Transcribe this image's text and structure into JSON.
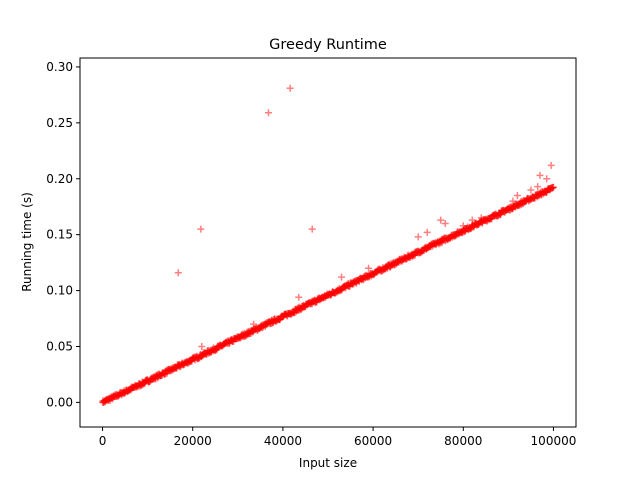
{
  "chart_data": {
    "type": "scatter",
    "title": "Greedy Runtime",
    "xlabel": "Input size",
    "ylabel": "Running time (s)",
    "xlim": [
      -5000,
      105000
    ],
    "ylim": [
      -0.022,
      0.308
    ],
    "xticks": [
      0,
      20000,
      40000,
      60000,
      80000,
      100000
    ],
    "xtick_labels": [
      "0",
      "20000",
      "40000",
      "60000",
      "80000",
      "100000"
    ],
    "yticks": [
      0.0,
      0.05,
      0.1,
      0.15,
      0.2,
      0.25,
      0.3
    ],
    "ytick_labels": [
      "0.00",
      "0.05",
      "0.10",
      "0.15",
      "0.20",
      "0.25",
      "0.30"
    ],
    "grid": false,
    "legend": "none",
    "marker": "plus",
    "color": "#ff0000",
    "series": [
      {
        "trend": {
          "x_start": 0,
          "x_end": 100000,
          "step": 100,
          "y_per_unit": 1.92e-06,
          "noise": 0.0015
        },
        "outliers": [
          {
            "x": 16800,
            "y": 0.116
          },
          {
            "x": 21800,
            "y": 0.155
          },
          {
            "x": 22000,
            "y": 0.05
          },
          {
            "x": 33500,
            "y": 0.07
          },
          {
            "x": 36800,
            "y": 0.259
          },
          {
            "x": 41600,
            "y": 0.281
          },
          {
            "x": 43500,
            "y": 0.094
          },
          {
            "x": 46500,
            "y": 0.155
          },
          {
            "x": 53000,
            "y": 0.112
          },
          {
            "x": 59000,
            "y": 0.12
          },
          {
            "x": 70000,
            "y": 0.148
          },
          {
            "x": 72000,
            "y": 0.152
          },
          {
            "x": 75000,
            "y": 0.163
          },
          {
            "x": 76000,
            "y": 0.16
          },
          {
            "x": 80000,
            "y": 0.158
          },
          {
            "x": 82000,
            "y": 0.163
          },
          {
            "x": 84000,
            "y": 0.165
          },
          {
            "x": 91000,
            "y": 0.18
          },
          {
            "x": 92000,
            "y": 0.185
          },
          {
            "x": 95000,
            "y": 0.19
          },
          {
            "x": 96500,
            "y": 0.193
          },
          {
            "x": 97000,
            "y": 0.203
          },
          {
            "x": 98500,
            "y": 0.2
          },
          {
            "x": 99500,
            "y": 0.212
          }
        ]
      }
    ]
  }
}
